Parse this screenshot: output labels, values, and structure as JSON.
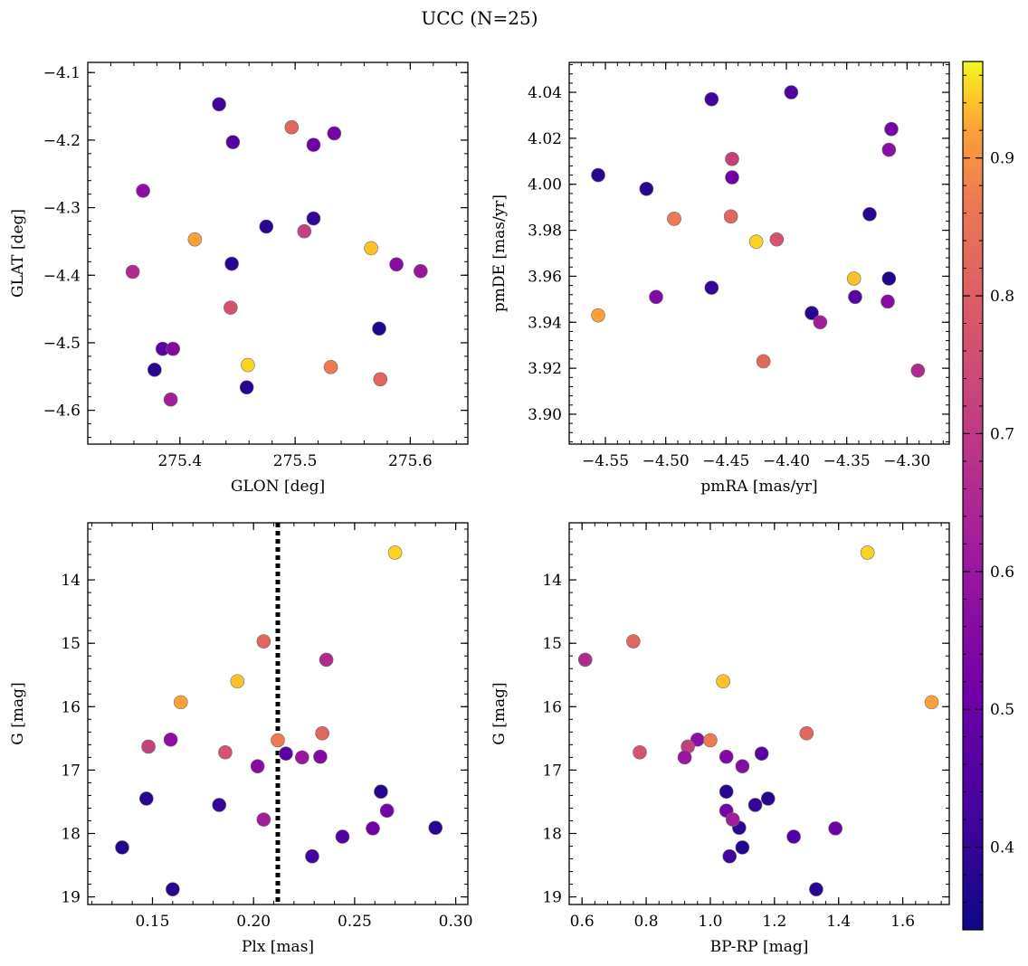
{
  "figure": {
    "title": "UCC (N=25)"
  },
  "colormap": {
    "name": "plasma",
    "range": [
      0.34,
      0.97
    ],
    "ticks": [
      0.4,
      0.5,
      0.6,
      0.7,
      0.8,
      0.9
    ],
    "tick_labels": [
      "0.4",
      "0.5",
      "0.6",
      "0.7",
      "0.8",
      "0.9"
    ]
  },
  "reference_line": {
    "panel": "plx-g",
    "axis": "x",
    "value": 0.212,
    "style": "dotted",
    "color": "#000000"
  },
  "stars": [
    {
      "glon": 275.434,
      "glat": -4.147,
      "pmra": -4.462,
      "pmde": 4.037,
      "plx": 0.229,
      "g": 18.36,
      "bprp": 1.06,
      "prob": 0.42
    },
    {
      "glon": 275.446,
      "glat": -4.203,
      "pmra": -4.396,
      "pmde": 4.04,
      "plx": 0.244,
      "g": 18.05,
      "bprp": 1.26,
      "prob": 0.45
    },
    {
      "glon": 275.497,
      "glat": -4.181,
      "pmra": -4.419,
      "pmde": 3.923,
      "plx": 0.205,
      "g": 14.97,
      "bprp": 0.76,
      "prob": 0.82
    },
    {
      "glon": 275.516,
      "glat": -4.207,
      "pmra": -4.445,
      "pmde": 4.003,
      "plx": 0.259,
      "g": 17.92,
      "bprp": 1.39,
      "prob": 0.51
    },
    {
      "glon": 275.534,
      "glat": -4.19,
      "pmra": -4.313,
      "pmde": 4.024,
      "plx": 0.266,
      "g": 17.64,
      "bprp": 1.05,
      "prob": 0.53
    },
    {
      "glon": 275.368,
      "glat": -4.275,
      "pmra": -4.315,
      "pmde": 4.015,
      "plx": 0.159,
      "g": 16.52,
      "bprp": 0.96,
      "prob": 0.57
    },
    {
      "glon": 275.413,
      "glat": -4.347,
      "pmra": -4.556,
      "pmde": 3.943,
      "plx": 0.164,
      "g": 15.93,
      "bprp": 1.69,
      "prob": 0.92
    },
    {
      "glon": 275.475,
      "glat": -4.328,
      "pmra": -4.331,
      "pmde": 3.987,
      "plx": 0.263,
      "g": 17.34,
      "bprp": 1.05,
      "prob": 0.38
    },
    {
      "glon": 275.516,
      "glat": -4.316,
      "pmra": -4.462,
      "pmde": 3.955,
      "plx": 0.183,
      "g": 17.55,
      "bprp": 1.14,
      "prob": 0.4
    },
    {
      "glon": 275.508,
      "glat": -4.335,
      "pmra": -4.445,
      "pmde": 4.011,
      "plx": 0.148,
      "g": 16.63,
      "bprp": 0.93,
      "prob": 0.72
    },
    {
      "glon": 275.566,
      "glat": -4.36,
      "pmra": -4.344,
      "pmde": 3.959,
      "plx": 0.192,
      "g": 15.6,
      "bprp": 1.04,
      "prob": 0.94
    },
    {
      "glon": 275.359,
      "glat": -4.395,
      "pmra": -4.291,
      "pmde": 3.919,
      "plx": 0.236,
      "g": 15.26,
      "bprp": 0.61,
      "prob": 0.66
    },
    {
      "glon": 275.445,
      "glat": -4.383,
      "pmra": -4.379,
      "pmde": 3.944,
      "plx": 0.147,
      "g": 17.45,
      "bprp": 1.18,
      "prob": 0.38
    },
    {
      "glon": 275.588,
      "glat": -4.384,
      "pmra": -4.316,
      "pmde": 3.949,
      "plx": 0.202,
      "g": 16.94,
      "bprp": 1.1,
      "prob": 0.56
    },
    {
      "glon": 275.609,
      "glat": -4.394,
      "pmra": -4.493,
      "pmde": 3.985,
      "plx": 0.224,
      "g": 16.8,
      "bprp": 0.92,
      "prob": 0.6
    },
    {
      "glon": 275.444,
      "glat": -4.448,
      "pmra": -4.408,
      "pmde": 3.976,
      "plx": 0.186,
      "g": 16.72,
      "bprp": 0.78,
      "prob": 0.77
    },
    {
      "glon": 275.573,
      "glat": -4.479,
      "pmra": -4.315,
      "pmde": 3.959,
      "plx": 0.135,
      "g": 18.22,
      "bprp": 1.1,
      "prob": 0.37
    },
    {
      "glon": 275.385,
      "glat": -4.509,
      "pmra": -4.343,
      "pmde": 3.951,
      "plx": 0.216,
      "g": 16.74,
      "bprp": 1.16,
      "prob": 0.47
    },
    {
      "glon": 275.394,
      "glat": -4.509,
      "pmra": -4.508,
      "pmde": 3.951,
      "plx": 0.233,
      "g": 16.79,
      "bprp": 1.05,
      "prob": 0.55
    },
    {
      "glon": 275.378,
      "glat": -4.54,
      "pmra": -4.516,
      "pmde": 3.998,
      "plx": 0.29,
      "g": 17.91,
      "bprp": 1.09,
      "prob": 0.38
    },
    {
      "glon": 275.459,
      "glat": -4.533,
      "pmra": -4.425,
      "pmde": 3.975,
      "plx": 0.27,
      "g": 13.57,
      "bprp": 1.49,
      "prob": 0.95
    },
    {
      "glon": 275.531,
      "glat": -4.536,
      "pmra": -4.493,
      "pmde": 3.985,
      "plx": 0.212,
      "g": 16.53,
      "bprp": 1.0,
      "prob": 0.87
    },
    {
      "glon": 275.574,
      "glat": -4.554,
      "pmra": -4.446,
      "pmde": 3.986,
      "plx": 0.234,
      "g": 16.42,
      "bprp": 1.3,
      "prob": 0.82
    },
    {
      "glon": 275.392,
      "glat": -4.584,
      "pmra": -4.372,
      "pmde": 3.94,
      "plx": 0.205,
      "g": 17.78,
      "bprp": 1.07,
      "prob": 0.62
    },
    {
      "glon": 275.458,
      "glat": -4.566,
      "pmra": -4.556,
      "pmde": 4.004,
      "plx": 0.16,
      "g": 18.88,
      "bprp": 1.33,
      "prob": 0.38
    }
  ],
  "chart_data": [
    {
      "id": "glon-glat",
      "type": "scatter",
      "title": "",
      "xlabel": "GLON [deg]",
      "ylabel": "GLAT [deg]",
      "x_field": "glon",
      "y_field": "glat",
      "xlim": [
        275.32,
        275.65
      ],
      "ylim": [
        -4.65,
        -4.085
      ],
      "y_inverted": false,
      "xticks": [
        275.4,
        275.5,
        275.6
      ],
      "xtick_labels": [
        "275.4",
        "275.5",
        "275.6"
      ],
      "yticks": [
        -4.1,
        -4.2,
        -4.3,
        -4.4,
        -4.5,
        -4.6
      ],
      "ytick_labels": [
        "−4.1",
        "−4.2",
        "−4.3",
        "−4.4",
        "−4.5",
        "−4.6"
      ],
      "xminor": 0.02,
      "yminor": 0.02,
      "grid": false
    },
    {
      "id": "pmra-pmde",
      "type": "scatter",
      "title": "",
      "xlabel": "pmRA [mas/yr]",
      "ylabel": "pmDE [mas/yr]",
      "x_field": "pmra",
      "y_field": "pmde",
      "xlim": [
        -4.58,
        -4.265
      ],
      "ylim": [
        3.887,
        4.053
      ],
      "y_inverted": false,
      "xticks": [
        -4.55,
        -4.5,
        -4.45,
        -4.4,
        -4.35,
        -4.3
      ],
      "xtick_labels": [
        "−4.55",
        "−4.50",
        "−4.45",
        "−4.40",
        "−4.35",
        "−4.30"
      ],
      "yticks": [
        3.9,
        3.92,
        3.94,
        3.96,
        3.98,
        4.0,
        4.02,
        4.04
      ],
      "ytick_labels": [
        "3.90",
        "3.92",
        "3.94",
        "3.96",
        "3.98",
        "4.00",
        "4.02",
        "4.04"
      ],
      "xminor": 0.01,
      "yminor": 0.004,
      "grid": false
    },
    {
      "id": "plx-g",
      "type": "scatter",
      "title": "",
      "xlabel": "Plx [mas]",
      "ylabel": "G [mag]",
      "x_field": "plx",
      "y_field": "g",
      "xlim": [
        0.118,
        0.306
      ],
      "ylim": [
        13.1,
        19.12
      ],
      "y_inverted": true,
      "xticks": [
        0.15,
        0.2,
        0.25,
        0.3
      ],
      "xtick_labels": [
        "0.15",
        "0.20",
        "0.25",
        "0.30"
      ],
      "yticks": [
        14,
        15,
        16,
        17,
        18,
        19
      ],
      "ytick_labels": [
        "14",
        "15",
        "16",
        "17",
        "18",
        "19"
      ],
      "xminor": 0.01,
      "yminor": 0.2,
      "grid": false
    },
    {
      "id": "bprp-g",
      "type": "scatter",
      "title": "",
      "xlabel": "BP-RP [mag]",
      "ylabel": "G [mag]",
      "x_field": "bprp",
      "y_field": "g",
      "xlim": [
        0.56,
        1.745
      ],
      "ylim": [
        13.1,
        19.12
      ],
      "y_inverted": true,
      "xticks": [
        0.6,
        0.8,
        1.0,
        1.2,
        1.4,
        1.6
      ],
      "xtick_labels": [
        "0.6",
        "0.8",
        "1.0",
        "1.2",
        "1.4",
        "1.6"
      ],
      "yticks": [
        14,
        15,
        16,
        17,
        18,
        19
      ],
      "ytick_labels": [
        "14",
        "15",
        "16",
        "17",
        "18",
        "19"
      ],
      "xminor": 0.04,
      "yminor": 0.2,
      "grid": false
    }
  ]
}
